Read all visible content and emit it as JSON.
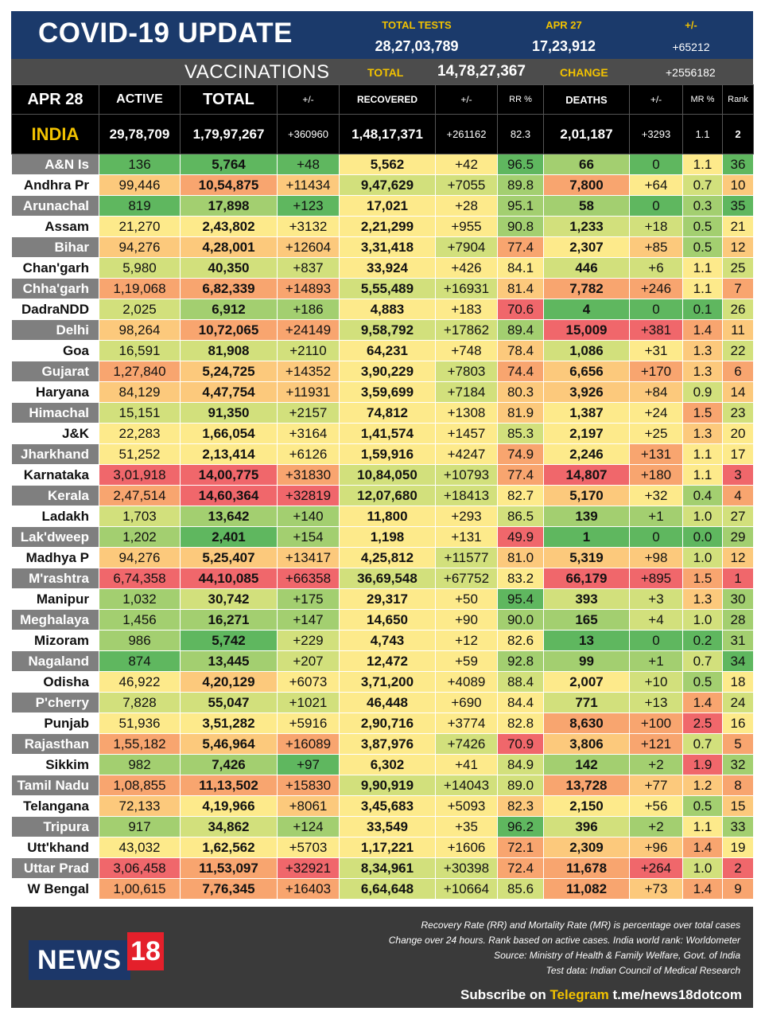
{
  "header": {
    "title": "COVID-19 UPDATE",
    "total_tests_label": "TOTAL TESTS",
    "total_tests_value": "28,27,03,789",
    "date_prev_label": "APR 27",
    "date_prev_value": "17,23,912",
    "change_label": "+/-",
    "change_value": "+65212"
  },
  "vaccinations": {
    "label": "VACCINATIONS",
    "total_label": "TOTAL",
    "total_value": "14,78,27,367",
    "change_label": "CHANGE",
    "change_value": "+2556182"
  },
  "columns": {
    "date": "APR 28",
    "active": "ACTIVE",
    "total": "TOTAL",
    "total_change": "+/-",
    "recovered": "RECOVERED",
    "recovered_change": "+/-",
    "rr": "RR %",
    "deaths": "DEATHS",
    "deaths_change": "+/-",
    "mr": "MR %",
    "rank": "Rank"
  },
  "india": {
    "name": "INDIA",
    "active": "29,78,709",
    "total": "1,79,97,267",
    "total_change": "+360960",
    "recovered": "1,48,17,371",
    "recovered_change": "+261162",
    "rr": "82.3",
    "deaths": "2,01,187",
    "deaths_change": "+3293",
    "mr": "1.1",
    "rank": "2"
  },
  "colors": {
    "green": "#5fb75f",
    "light_green": "#a3cf70",
    "yellow_green": "#d2e07c",
    "yellow": "#fdea8b",
    "light_orange": "#fcc97c",
    "orange": "#f8a56f",
    "red": "#f0676b",
    "header_blue": "#1b3a6b",
    "header_grey": "#4c4c4c",
    "accent_yellow": "#f2c200"
  },
  "states": [
    {
      "name": "A&N Is",
      "active": "136",
      "total": "5,764",
      "total_change": "+48",
      "recovered": "5,562",
      "recovered_change": "+42",
      "rr": "96.5",
      "deaths": "66",
      "deaths_change": "0",
      "mr": "1.1",
      "rank": "36"
    },
    {
      "name": "Andhra Pr",
      "active": "99,446",
      "total": "10,54,875",
      "total_change": "+11434",
      "recovered": "9,47,629",
      "recovered_change": "+7055",
      "rr": "89.8",
      "deaths": "7,800",
      "deaths_change": "+64",
      "mr": "0.7",
      "rank": "10"
    },
    {
      "name": "Arunachal",
      "active": "819",
      "total": "17,898",
      "total_change": "+123",
      "recovered": "17,021",
      "recovered_change": "+28",
      "rr": "95.1",
      "deaths": "58",
      "deaths_change": "0",
      "mr": "0.3",
      "rank": "35"
    },
    {
      "name": "Assam",
      "active": "21,270",
      "total": "2,43,802",
      "total_change": "+3132",
      "recovered": "2,21,299",
      "recovered_change": "+955",
      "rr": "90.8",
      "deaths": "1,233",
      "deaths_change": "+18",
      "mr": "0.5",
      "rank": "21"
    },
    {
      "name": "Bihar",
      "active": "94,276",
      "total": "4,28,001",
      "total_change": "+12604",
      "recovered": "3,31,418",
      "recovered_change": "+7904",
      "rr": "77.4",
      "deaths": "2,307",
      "deaths_change": "+85",
      "mr": "0.5",
      "rank": "12"
    },
    {
      "name": "Chan'garh",
      "active": "5,980",
      "total": "40,350",
      "total_change": "+837",
      "recovered": "33,924",
      "recovered_change": "+426",
      "rr": "84.1",
      "deaths": "446",
      "deaths_change": "+6",
      "mr": "1.1",
      "rank": "25"
    },
    {
      "name": "Chha'garh",
      "active": "1,19,068",
      "total": "6,82,339",
      "total_change": "+14893",
      "recovered": "5,55,489",
      "recovered_change": "+16931",
      "rr": "81.4",
      "deaths": "7,782",
      "deaths_change": "+246",
      "mr": "1.1",
      "rank": "7"
    },
    {
      "name": "DadraNDD",
      "active": "2,025",
      "total": "6,912",
      "total_change": "+186",
      "recovered": "4,883",
      "recovered_change": "+183",
      "rr": "70.6",
      "deaths": "4",
      "deaths_change": "0",
      "mr": "0.1",
      "rank": "26"
    },
    {
      "name": "Delhi",
      "active": "98,264",
      "total": "10,72,065",
      "total_change": "+24149",
      "recovered": "9,58,792",
      "recovered_change": "+17862",
      "rr": "89.4",
      "deaths": "15,009",
      "deaths_change": "+381",
      "mr": "1.4",
      "rank": "11"
    },
    {
      "name": "Goa",
      "active": "16,591",
      "total": "81,908",
      "total_change": "+2110",
      "recovered": "64,231",
      "recovered_change": "+748",
      "rr": "78.4",
      "deaths": "1,086",
      "deaths_change": "+31",
      "mr": "1.3",
      "rank": "22"
    },
    {
      "name": "Gujarat",
      "active": "1,27,840",
      "total": "5,24,725",
      "total_change": "+14352",
      "recovered": "3,90,229",
      "recovered_change": "+7803",
      "rr": "74.4",
      "deaths": "6,656",
      "deaths_change": "+170",
      "mr": "1.3",
      "rank": "6"
    },
    {
      "name": "Haryana",
      "active": "84,129",
      "total": "4,47,754",
      "total_change": "+11931",
      "recovered": "3,59,699",
      "recovered_change": "+7184",
      "rr": "80.3",
      "deaths": "3,926",
      "deaths_change": "+84",
      "mr": "0.9",
      "rank": "14"
    },
    {
      "name": "Himachal",
      "active": "15,151",
      "total": "91,350",
      "total_change": "+2157",
      "recovered": "74,812",
      "recovered_change": "+1308",
      "rr": "81.9",
      "deaths": "1,387",
      "deaths_change": "+24",
      "mr": "1.5",
      "rank": "23"
    },
    {
      "name": "J&K",
      "active": "22,283",
      "total": "1,66,054",
      "total_change": "+3164",
      "recovered": "1,41,574",
      "recovered_change": "+1457",
      "rr": "85.3",
      "deaths": "2,197",
      "deaths_change": "+25",
      "mr": "1.3",
      "rank": "20"
    },
    {
      "name": "Jharkhand",
      "active": "51,252",
      "total": "2,13,414",
      "total_change": "+6126",
      "recovered": "1,59,916",
      "recovered_change": "+4247",
      "rr": "74.9",
      "deaths": "2,246",
      "deaths_change": "+131",
      "mr": "1.1",
      "rank": "17"
    },
    {
      "name": "Karnataka",
      "active": "3,01,918",
      "total": "14,00,775",
      "total_change": "+31830",
      "recovered": "10,84,050",
      "recovered_change": "+10793",
      "rr": "77.4",
      "deaths": "14,807",
      "deaths_change": "+180",
      "mr": "1.1",
      "rank": "3"
    },
    {
      "name": "Kerala",
      "active": "2,47,514",
      "total": "14,60,364",
      "total_change": "+32819",
      "recovered": "12,07,680",
      "recovered_change": "+18413",
      "rr": "82.7",
      "deaths": "5,170",
      "deaths_change": "+32",
      "mr": "0.4",
      "rank": "4"
    },
    {
      "name": "Ladakh",
      "active": "1,703",
      "total": "13,642",
      "total_change": "+140",
      "recovered": "11,800",
      "recovered_change": "+293",
      "rr": "86.5",
      "deaths": "139",
      "deaths_change": "+1",
      "mr": "1.0",
      "rank": "27"
    },
    {
      "name": "Lak'dweep",
      "active": "1,202",
      "total": "2,401",
      "total_change": "+154",
      "recovered": "1,198",
      "recovered_change": "+131",
      "rr": "49.9",
      "deaths": "1",
      "deaths_change": "0",
      "mr": "0.0",
      "rank": "29"
    },
    {
      "name": "Madhya P",
      "active": "94,276",
      "total": "5,25,407",
      "total_change": "+13417",
      "recovered": "4,25,812",
      "recovered_change": "+11577",
      "rr": "81.0",
      "deaths": "5,319",
      "deaths_change": "+98",
      "mr": "1.0",
      "rank": "12"
    },
    {
      "name": "M'rashtra",
      "active": "6,74,358",
      "total": "44,10,085",
      "total_change": "+66358",
      "recovered": "36,69,548",
      "recovered_change": "+67752",
      "rr": "83.2",
      "deaths": "66,179",
      "deaths_change": "+895",
      "mr": "1.5",
      "rank": "1"
    },
    {
      "name": "Manipur",
      "active": "1,032",
      "total": "30,742",
      "total_change": "+175",
      "recovered": "29,317",
      "recovered_change": "+50",
      "rr": "95.4",
      "deaths": "393",
      "deaths_change": "+3",
      "mr": "1.3",
      "rank": "30"
    },
    {
      "name": "Meghalaya",
      "active": "1,456",
      "total": "16,271",
      "total_change": "+147",
      "recovered": "14,650",
      "recovered_change": "+90",
      "rr": "90.0",
      "deaths": "165",
      "deaths_change": "+4",
      "mr": "1.0",
      "rank": "28"
    },
    {
      "name": "Mizoram",
      "active": "986",
      "total": "5,742",
      "total_change": "+229",
      "recovered": "4,743",
      "recovered_change": "+12",
      "rr": "82.6",
      "deaths": "13",
      "deaths_change": "0",
      "mr": "0.2",
      "rank": "31"
    },
    {
      "name": "Nagaland",
      "active": "874",
      "total": "13,445",
      "total_change": "+207",
      "recovered": "12,472",
      "recovered_change": "+59",
      "rr": "92.8",
      "deaths": "99",
      "deaths_change": "+1",
      "mr": "0.7",
      "rank": "34"
    },
    {
      "name": "Odisha",
      "active": "46,922",
      "total": "4,20,129",
      "total_change": "+6073",
      "recovered": "3,71,200",
      "recovered_change": "+4089",
      "rr": "88.4",
      "deaths": "2,007",
      "deaths_change": "+10",
      "mr": "0.5",
      "rank": "18"
    },
    {
      "name": "P'cherry",
      "active": "7,828",
      "total": "55,047",
      "total_change": "+1021",
      "recovered": "46,448",
      "recovered_change": "+690",
      "rr": "84.4",
      "deaths": "771",
      "deaths_change": "+13",
      "mr": "1.4",
      "rank": "24"
    },
    {
      "name": "Punjab",
      "active": "51,936",
      "total": "3,51,282",
      "total_change": "+5916",
      "recovered": "2,90,716",
      "recovered_change": "+3774",
      "rr": "82.8",
      "deaths": "8,630",
      "deaths_change": "+100",
      "mr": "2.5",
      "rank": "16"
    },
    {
      "name": "Rajasthan",
      "active": "1,55,182",
      "total": "5,46,964",
      "total_change": "+16089",
      "recovered": "3,87,976",
      "recovered_change": "+7426",
      "rr": "70.9",
      "deaths": "3,806",
      "deaths_change": "+121",
      "mr": "0.7",
      "rank": "5"
    },
    {
      "name": "Sikkim",
      "active": "982",
      "total": "7,426",
      "total_change": "+97",
      "recovered": "6,302",
      "recovered_change": "+41",
      "rr": "84.9",
      "deaths": "142",
      "deaths_change": "+2",
      "mr": "1.9",
      "rank": "32"
    },
    {
      "name": "Tamil Nadu",
      "active": "1,08,855",
      "total": "11,13,502",
      "total_change": "+15830",
      "recovered": "9,90,919",
      "recovered_change": "+14043",
      "rr": "89.0",
      "deaths": "13,728",
      "deaths_change": "+77",
      "mr": "1.2",
      "rank": "8"
    },
    {
      "name": "Telangana",
      "active": "72,133",
      "total": "4,19,966",
      "total_change": "+8061",
      "recovered": "3,45,683",
      "recovered_change": "+5093",
      "rr": "82.3",
      "deaths": "2,150",
      "deaths_change": "+56",
      "mr": "0.5",
      "rank": "15"
    },
    {
      "name": "Tripura",
      "active": "917",
      "total": "34,862",
      "total_change": "+124",
      "recovered": "33,549",
      "recovered_change": "+35",
      "rr": "96.2",
      "deaths": "396",
      "deaths_change": "+2",
      "mr": "1.1",
      "rank": "33"
    },
    {
      "name": "Utt'khand",
      "active": "43,032",
      "total": "1,62,562",
      "total_change": "+5703",
      "recovered": "1,17,221",
      "recovered_change": "+1606",
      "rr": "72.1",
      "deaths": "2,309",
      "deaths_change": "+96",
      "mr": "1.4",
      "rank": "19"
    },
    {
      "name": "Uttar Prad",
      "active": "3,06,458",
      "total": "11,53,097",
      "total_change": "+32921",
      "recovered": "8,34,961",
      "recovered_change": "+30398",
      "rr": "72.4",
      "deaths": "11,678",
      "deaths_change": "+264",
      "mr": "1.0",
      "rank": "2"
    },
    {
      "name": "W Bengal",
      "active": "1,00,615",
      "total": "7,76,345",
      "total_change": "+16403",
      "recovered": "6,64,648",
      "recovered_change": "+10664",
      "rr": "85.6",
      "deaths": "11,082",
      "deaths_change": "+73",
      "mr": "1.4",
      "rank": "9"
    }
  ],
  "footer": {
    "logo_text": "NEWS",
    "logo_number": "18",
    "notes": [
      "Recovery Rate (RR) and Mortality Rate (MR) is percentage over total cases",
      "Change over 24 hours. Rank based on active cases. India world rank: Worldometer",
      "Source: Ministry of Health & Family Welfare, Govt. of India",
      "Test data: Indian Council of Medical Research"
    ],
    "subscribe_prefix": "Subscribe on",
    "subscribe_platform": "Telegram",
    "subscribe_link": "t.me/news18dotcom"
  }
}
